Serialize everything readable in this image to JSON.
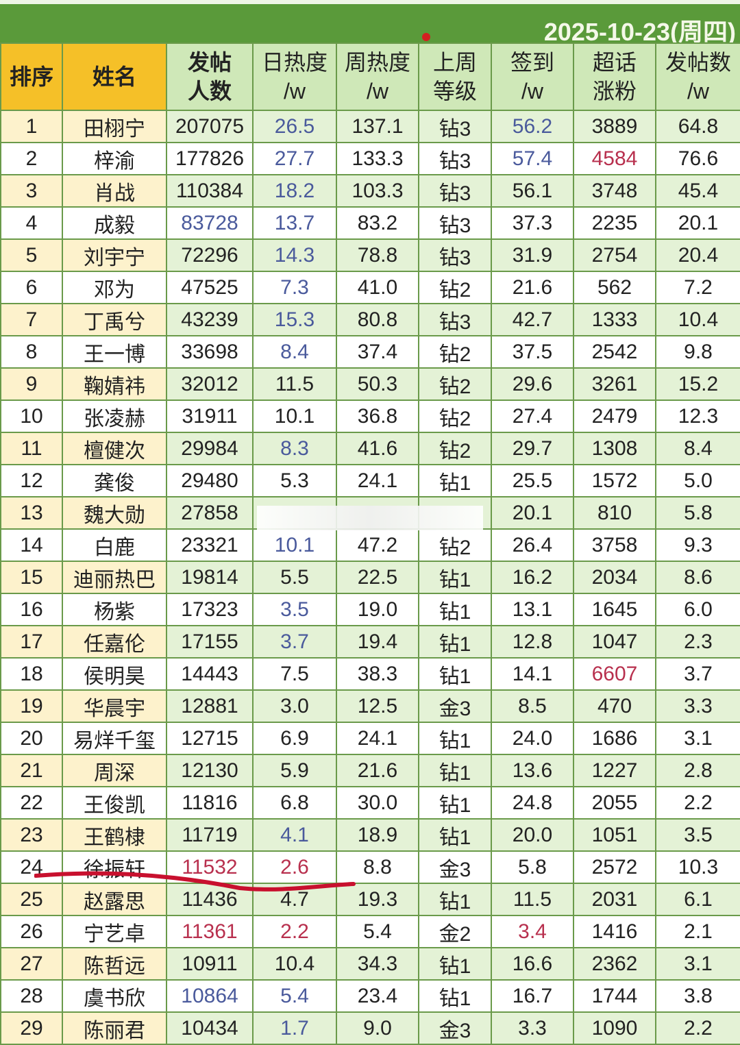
{
  "date": "2025-10-23(周四)",
  "headers": [
    [
      "排序",
      ""
    ],
    [
      "姓名",
      ""
    ],
    [
      "发帖",
      "人数"
    ],
    [
      "日热度",
      "/w"
    ],
    [
      "周热度",
      "/w"
    ],
    [
      "上周",
      "等级"
    ],
    [
      "签到",
      "/w"
    ],
    [
      "超话",
      "涨粉"
    ],
    [
      "发帖数",
      "/w"
    ]
  ],
  "colors": {
    "header_green": "#5a9a3a",
    "rank_header": "#f5c028",
    "blue_value": "#4a5a9c",
    "red_value": "#b8304e"
  },
  "rows": [
    [
      "1",
      "田栩宁",
      "207075",
      "26.5",
      "137.1",
      "钻3",
      "56.2",
      "3889",
      "64.8"
    ],
    [
      "2",
      "梓渝",
      "177826",
      "27.7",
      "133.3",
      "钻3",
      "57.4",
      "4584",
      "76.6"
    ],
    [
      "3",
      "肖战",
      "110384",
      "18.2",
      "103.3",
      "钻3",
      "56.1",
      "3748",
      "45.4"
    ],
    [
      "4",
      "成毅",
      "83728",
      "13.7",
      "83.2",
      "钻3",
      "37.3",
      "2235",
      "20.1"
    ],
    [
      "5",
      "刘宇宁",
      "72296",
      "14.3",
      "78.8",
      "钻3",
      "31.9",
      "2754",
      "20.4"
    ],
    [
      "6",
      "邓为",
      "47525",
      "7.3",
      "41.0",
      "钻2",
      "21.6",
      "562",
      "7.2"
    ],
    [
      "7",
      "丁禹兮",
      "43239",
      "15.3",
      "80.8",
      "钻3",
      "42.7",
      "1333",
      "10.4"
    ],
    [
      "8",
      "王一博",
      "33698",
      "8.4",
      "37.4",
      "钻2",
      "37.5",
      "2542",
      "9.8"
    ],
    [
      "9",
      "鞠婧祎",
      "32012",
      "11.5",
      "50.3",
      "钻2",
      "29.6",
      "3261",
      "15.2"
    ],
    [
      "10",
      "张凌赫",
      "31911",
      "10.1",
      "36.8",
      "钻2",
      "27.4",
      "2479",
      "12.3"
    ],
    [
      "11",
      "檀健次",
      "29984",
      "8.3",
      "41.6",
      "钻2",
      "29.7",
      "1308",
      "8.4"
    ],
    [
      "12",
      "龚俊",
      "29480",
      "5.3",
      "24.1",
      "钻1",
      "25.5",
      "1572",
      "5.0"
    ],
    [
      "13",
      "魏大勋",
      "27858",
      "",
      "",
      "",
      "20.1",
      "810",
      "5.8"
    ],
    [
      "14",
      "白鹿",
      "23321",
      "10.1",
      "47.2",
      "钻2",
      "26.4",
      "3758",
      "9.3"
    ],
    [
      "15",
      "迪丽热巴",
      "19814",
      "5.5",
      "22.5",
      "钻1",
      "16.2",
      "2034",
      "8.6"
    ],
    [
      "16",
      "杨紫",
      "17323",
      "3.5",
      "19.0",
      "钻1",
      "13.1",
      "1645",
      "6.0"
    ],
    [
      "17",
      "任嘉伦",
      "17155",
      "3.7",
      "19.4",
      "钻1",
      "12.8",
      "1047",
      "2.3"
    ],
    [
      "18",
      "侯明昊",
      "14443",
      "7.5",
      "38.3",
      "钻1",
      "14.1",
      "6607",
      "3.7"
    ],
    [
      "19",
      "华晨宇",
      "12881",
      "3.0",
      "12.5",
      "金3",
      "8.5",
      "470",
      "3.3"
    ],
    [
      "20",
      "易烊千玺",
      "12715",
      "6.9",
      "24.1",
      "钻1",
      "24.0",
      "1686",
      "3.1"
    ],
    [
      "21",
      "周深",
      "12130",
      "5.9",
      "21.6",
      "钻1",
      "13.6",
      "1227",
      "2.8"
    ],
    [
      "22",
      "王俊凯",
      "11816",
      "6.8",
      "30.0",
      "钻1",
      "24.8",
      "2055",
      "2.2"
    ],
    [
      "23",
      "王鹤棣",
      "11719",
      "4.1",
      "18.9",
      "钻1",
      "20.0",
      "1051",
      "3.5"
    ],
    [
      "24",
      "徐振轩",
      "11532",
      "2.6",
      "8.8",
      "金3",
      "5.8",
      "2572",
      "10.3"
    ],
    [
      "25",
      "赵露思",
      "11436",
      "4.7",
      "19.3",
      "钻1",
      "11.5",
      "2031",
      "6.1"
    ],
    [
      "26",
      "宁艺卓",
      "11361",
      "2.2",
      "5.4",
      "金2",
      "3.4",
      "1416",
      "2.1"
    ],
    [
      "27",
      "陈哲远",
      "10911",
      "10.4",
      "34.3",
      "钻1",
      "16.6",
      "2362",
      "3.1"
    ],
    [
      "28",
      "虞书欣",
      "10864",
      "5.4",
      "23.4",
      "钻1",
      "16.7",
      "1744",
      "3.8"
    ],
    [
      "29",
      "陈丽君",
      "10434",
      "1.7",
      "9.0",
      "金3",
      "3.3",
      "1090",
      "2.2"
    ]
  ]
}
